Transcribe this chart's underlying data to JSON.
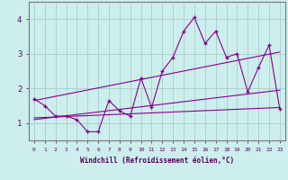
{
  "xlabel": "Windchill (Refroidissement éolien,°C)",
  "ylabel": "",
  "background_color": "#cceeed",
  "grid_color": "#aacccc",
  "line_color": "#880088",
  "x_labels": [
    "0",
    "1",
    "2",
    "3",
    "4",
    "5",
    "6",
    "7",
    "8",
    "9",
    "10",
    "11",
    "12",
    "13",
    "14",
    "15",
    "16",
    "17",
    "18",
    "19",
    "20",
    "21",
    "22",
    "23"
  ],
  "ylim": [
    0.5,
    4.5
  ],
  "xlim": [
    -0.5,
    23.5
  ],
  "yticks": [
    1,
    2,
    3,
    4
  ],
  "series1_x": [
    0,
    1,
    2,
    3,
    4,
    5,
    6,
    7,
    8,
    9,
    10,
    11,
    12,
    13,
    14,
    15,
    16,
    17,
    18,
    19,
    20,
    21,
    22,
    23
  ],
  "series1_y": [
    1.7,
    1.5,
    1.2,
    1.2,
    1.1,
    0.75,
    0.75,
    1.65,
    1.35,
    1.2,
    2.3,
    1.45,
    2.5,
    2.9,
    3.65,
    4.05,
    3.3,
    3.65,
    2.9,
    3.0,
    1.9,
    2.6,
    3.25,
    1.4
  ],
  "series2_x": [
    0,
    23
  ],
  "series2_y": [
    1.15,
    1.45
  ],
  "series3_x": [
    0,
    23
  ],
  "series3_y": [
    1.65,
    3.05
  ],
  "series4_x": [
    0,
    23
  ],
  "series4_y": [
    1.1,
    1.95
  ]
}
